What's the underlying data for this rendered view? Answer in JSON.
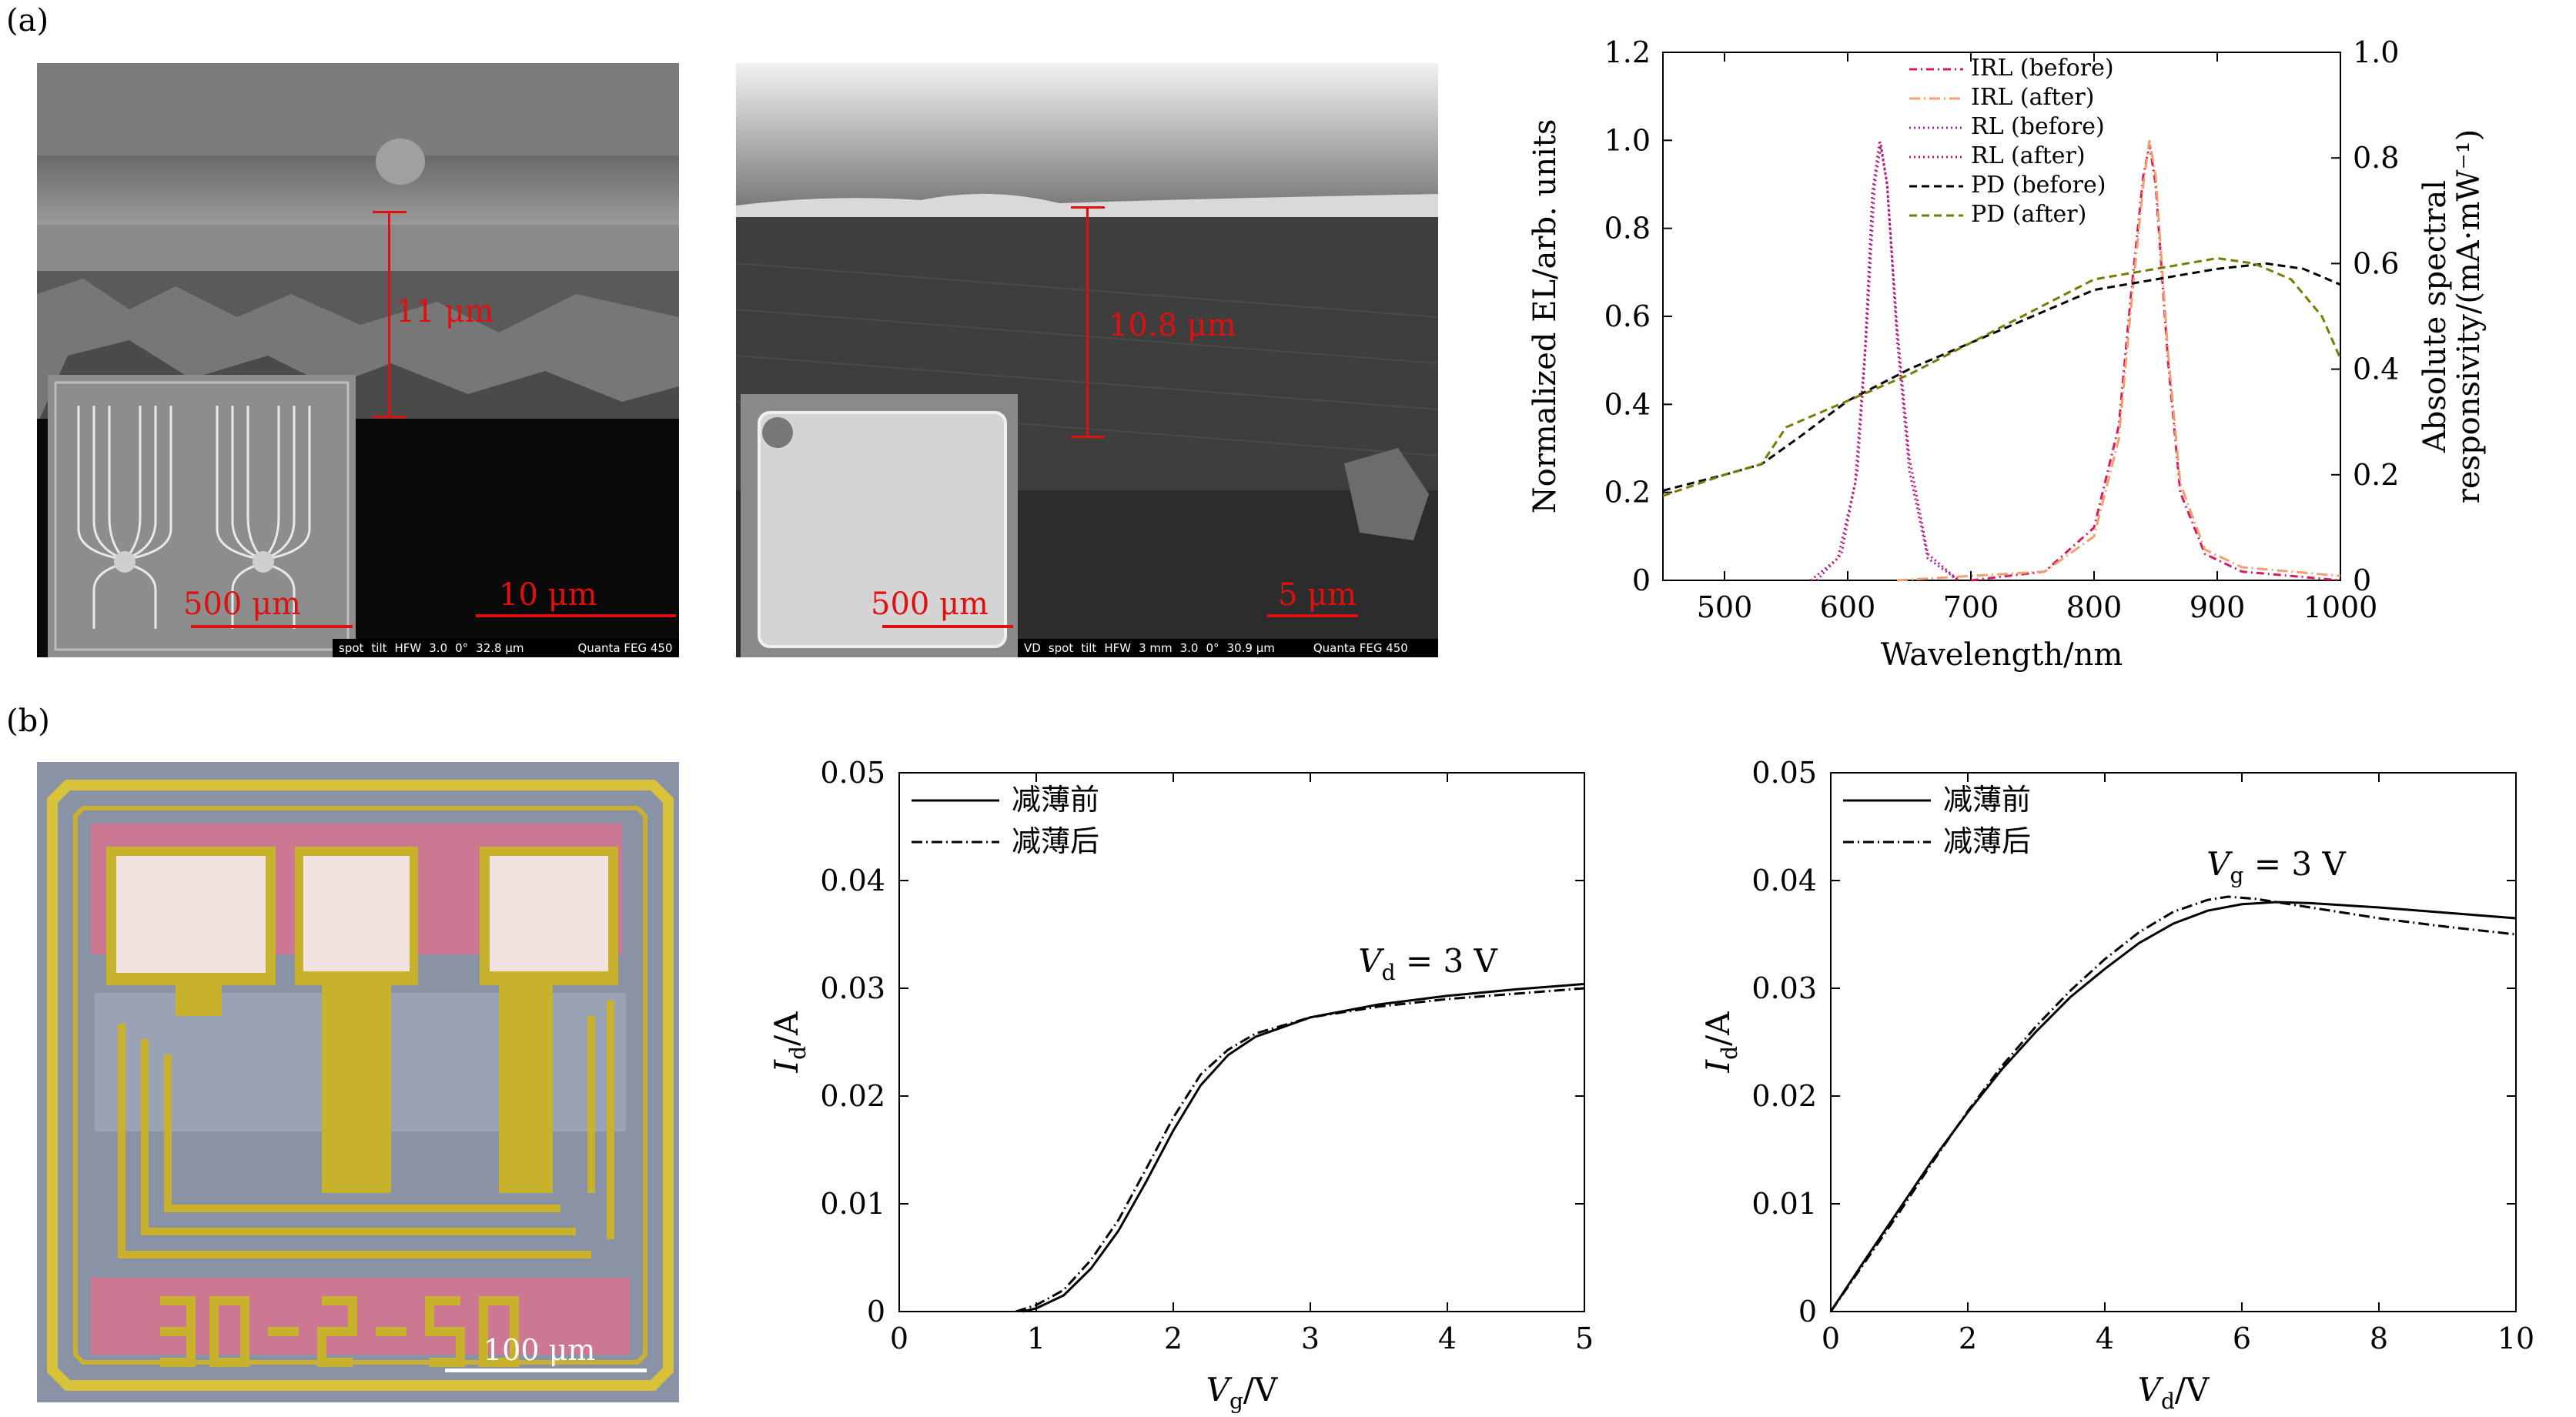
{
  "panels": {
    "a": "(a)",
    "b": "(b)"
  },
  "sem_images": {
    "left": {
      "scale_inset": "500 μm",
      "scale_main": "10 μm",
      "thickness": "11 μm",
      "info": [
        "spot",
        "tilt",
        "HFW",
        "3.0",
        "0°",
        "32.8 μm",
        "Quanta FEG 450"
      ]
    },
    "right": {
      "scale_inset": "500 μm",
      "scale_main": "5 μm",
      "thickness": "10.8 μm",
      "info": [
        "VD",
        "spot",
        "tilt",
        "HFW",
        "3 mm",
        "3.0",
        "0°",
        "30.9 μm",
        "Quanta FEG 450"
      ]
    }
  },
  "micrograph": {
    "chip_label": "30-2-50",
    "scale": "100 μm"
  },
  "chart_data": [
    {
      "type": "line",
      "xlabel": "Wavelength/nm",
      "ylabel": "Normalized EL/arb. units",
      "y2label_line1": "Absolute spectral",
      "y2label_line2": "responsivity/(mA·mW⁻¹)",
      "xlim": [
        450,
        1000
      ],
      "ylim": [
        0,
        1.2
      ],
      "y2lim": [
        0,
        1.0
      ],
      "xticks": [
        500,
        600,
        700,
        800,
        900,
        1000
      ],
      "yticks": [
        0,
        0.2,
        0.4,
        0.6,
        0.8,
        1.0,
        1.2
      ],
      "y2ticks": [
        0,
        0.2,
        0.4,
        0.6,
        0.8,
        1.0
      ],
      "tick_labels_y": [
        "0",
        "0.2",
        "0.4",
        "0.6",
        "0.8",
        "1.0",
        "1.2"
      ],
      "tick_labels_y2": [
        "0",
        "0.2",
        "0.4",
        "0.6",
        "0.8",
        "1.0"
      ],
      "legend_position": "top-center",
      "series": [
        {
          "name": "IRL (before)",
          "axis": "left",
          "color": "#d81b60",
          "dash": "10 5 2 5",
          "x": [
            700,
            760,
            800,
            820,
            830,
            840,
            845,
            850,
            860,
            870,
            890,
            920,
            960,
            1000
          ],
          "y": [
            0.0,
            0.02,
            0.12,
            0.35,
            0.65,
            0.92,
            0.99,
            0.9,
            0.5,
            0.2,
            0.06,
            0.02,
            0.01,
            0.0
          ]
        },
        {
          "name": "IRL (after)",
          "axis": "left",
          "color": "#f0a070",
          "dash": "14 5 2 5",
          "x": [
            640,
            700,
            760,
            800,
            820,
            830,
            840,
            845,
            850,
            860,
            870,
            890,
            920,
            960,
            1000
          ],
          "y": [
            0.0,
            0.01,
            0.02,
            0.1,
            0.32,
            0.62,
            0.9,
            1.0,
            0.92,
            0.52,
            0.22,
            0.07,
            0.03,
            0.02,
            0.01
          ]
        },
        {
          "name": "RL (before)",
          "axis": "left",
          "color": "#9c27b0",
          "dash": "2 4",
          "x": [
            575,
            595,
            608,
            615,
            622,
            627,
            632,
            640,
            650,
            665,
            690
          ],
          "y": [
            0.0,
            0.06,
            0.25,
            0.55,
            0.9,
            0.99,
            0.9,
            0.55,
            0.25,
            0.05,
            0.0
          ]
        },
        {
          "name": "RL (after)",
          "axis": "left",
          "color": "#c2185b",
          "dash": "2 4",
          "x": [
            570,
            592,
            606,
            614,
            620,
            626,
            632,
            640,
            650,
            665,
            690
          ],
          "y": [
            0.0,
            0.05,
            0.22,
            0.52,
            0.88,
            1.0,
            0.9,
            0.58,
            0.28,
            0.06,
            0.0
          ]
        },
        {
          "name": "PD (before)",
          "axis": "right",
          "color": "#000000",
          "dash": "10 6",
          "x": [
            450,
            500,
            530,
            560,
            600,
            650,
            700,
            750,
            800,
            850,
            900,
            940,
            970,
            1000
          ],
          "y": [
            0.17,
            0.2,
            0.22,
            0.27,
            0.34,
            0.4,
            0.45,
            0.5,
            0.55,
            0.57,
            0.59,
            0.6,
            0.59,
            0.56
          ]
        },
        {
          "name": "PD (after)",
          "axis": "right",
          "color": "#7a7a00",
          "dash": "10 6",
          "x": [
            450,
            500,
            530,
            550,
            570,
            600,
            650,
            700,
            750,
            800,
            850,
            900,
            930,
            960,
            985,
            1000
          ],
          "y": [
            0.16,
            0.2,
            0.22,
            0.29,
            0.31,
            0.34,
            0.39,
            0.45,
            0.51,
            0.57,
            0.59,
            0.61,
            0.6,
            0.57,
            0.5,
            0.42
          ]
        }
      ]
    },
    {
      "type": "line",
      "xlabel": "V",
      "xlabel_sub": "g",
      "xlabel_unit": "/V",
      "ylabel": "I",
      "ylabel_sub": "d",
      "ylabel_unit": "/A",
      "xlim": [
        0,
        5
      ],
      "ylim": [
        0,
        0.05
      ],
      "xticks": [
        0,
        1,
        2,
        3,
        4,
        5
      ],
      "yticks": [
        0,
        0.01,
        0.02,
        0.03,
        0.04,
        0.05
      ],
      "tick_labels_y": [
        "0",
        "0.01",
        "0.02",
        "0.03",
        "0.04",
        "0.05"
      ],
      "annotation": {
        "text": "V",
        "sub": "d",
        "rest": " = 3 V"
      },
      "legend_position": "top-left",
      "series": [
        {
          "name": "减薄前",
          "dash": "",
          "x": [
            0.9,
            1.0,
            1.2,
            1.4,
            1.6,
            1.8,
            2.0,
            2.2,
            2.4,
            2.6,
            3.0,
            3.5,
            4.0,
            4.5,
            5.0
          ],
          "y": [
            0.0,
            0.0003,
            0.0015,
            0.004,
            0.0075,
            0.012,
            0.0168,
            0.021,
            0.0238,
            0.0255,
            0.0273,
            0.0285,
            0.0293,
            0.0299,
            0.0304
          ]
        },
        {
          "name": "减薄后",
          "dash": "14 5 2 5",
          "x": [
            0.85,
            1.0,
            1.2,
            1.4,
            1.6,
            1.8,
            2.0,
            2.2,
            2.4,
            2.6,
            3.0,
            3.5,
            4.0,
            4.5,
            5.0
          ],
          "y": [
            0.0,
            0.0006,
            0.002,
            0.0048,
            0.0085,
            0.0132,
            0.018,
            0.022,
            0.0243,
            0.0258,
            0.0273,
            0.0283,
            0.029,
            0.0295,
            0.03
          ]
        }
      ]
    },
    {
      "type": "line",
      "xlabel": "V",
      "xlabel_sub": "d",
      "xlabel_unit": "/V",
      "ylabel": "I",
      "ylabel_sub": "d",
      "ylabel_unit": "/A",
      "xlim": [
        0,
        10
      ],
      "ylim": [
        0,
        0.05
      ],
      "xticks": [
        0,
        2,
        4,
        6,
        8,
        10
      ],
      "yticks": [
        0,
        0.01,
        0.02,
        0.03,
        0.04,
        0.05
      ],
      "tick_labels_y": [
        "0",
        "0.01",
        "0.02",
        "0.03",
        "0.04",
        "0.05"
      ],
      "annotation": {
        "text": "V",
        "sub": "g",
        "rest": " = 3 V"
      },
      "legend_position": "top-left",
      "series": [
        {
          "name": "减薄前",
          "dash": "",
          "x": [
            0,
            0.5,
            1,
            1.5,
            2,
            2.5,
            3,
            3.5,
            4,
            4.5,
            5,
            5.5,
            6,
            6.5,
            7,
            8,
            9,
            10
          ],
          "y": [
            0,
            0.0048,
            0.0095,
            0.0142,
            0.0185,
            0.0225,
            0.026,
            0.0292,
            0.0318,
            0.0342,
            0.036,
            0.0372,
            0.0378,
            0.038,
            0.0379,
            0.0375,
            0.037,
            0.0365
          ]
        },
        {
          "name": "减薄后",
          "dash": "14 5 2 5",
          "x": [
            0,
            0.5,
            1,
            1.5,
            2,
            2.5,
            3,
            3.5,
            4,
            4.5,
            5,
            5.5,
            5.8,
            6.2,
            7,
            8,
            9,
            10
          ],
          "y": [
            0,
            0.0046,
            0.0092,
            0.014,
            0.0186,
            0.0228,
            0.0265,
            0.0298,
            0.0327,
            0.0352,
            0.0371,
            0.0382,
            0.0385,
            0.0383,
            0.0375,
            0.0365,
            0.0357,
            0.035
          ]
        }
      ]
    }
  ]
}
